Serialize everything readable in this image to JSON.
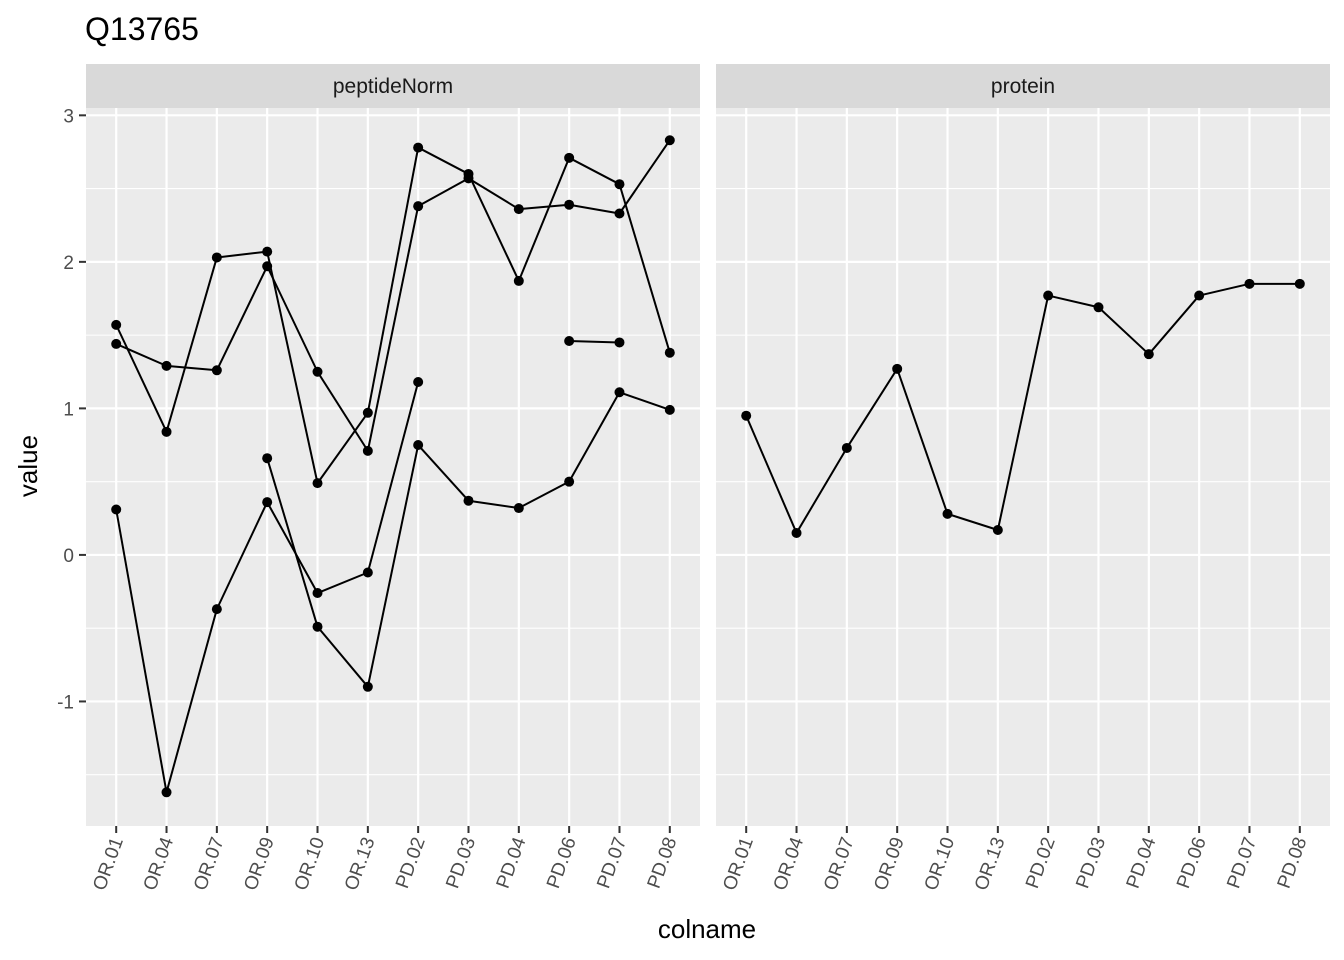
{
  "title": "Q13765",
  "chart_data": {
    "type": "line",
    "title": "Q13765",
    "xlabel": "colname",
    "ylabel": "value",
    "ylim": [
      -1.85,
      3.05
    ],
    "y_ticks": [
      -1,
      0,
      1,
      2,
      3
    ],
    "grid": true,
    "categories": [
      "OR.01",
      "OR.04",
      "OR.07",
      "OR.09",
      "OR.10",
      "OR.13",
      "PD.02",
      "PD.03",
      "PD.04",
      "PD.06",
      "PD.07",
      "PD.08"
    ],
    "panels": [
      {
        "label": "peptideNorm",
        "series": [
          {
            "values": [
              1.57,
              0.84,
              2.03,
              2.07,
              0.49,
              0.97,
              2.78,
              2.6,
              1.87,
              2.71,
              2.53,
              1.38
            ]
          },
          {
            "values": [
              1.44,
              1.29,
              1.26,
              1.97,
              1.25,
              0.71,
              2.38,
              2.57,
              2.36,
              2.39,
              2.33,
              2.83
            ]
          },
          {
            "values": [
              0.31,
              -1.62,
              -0.37,
              0.36,
              -0.26,
              -0.12,
              1.18,
              null,
              null,
              null,
              null,
              null
            ]
          },
          {
            "values": [
              null,
              null,
              null,
              0.66,
              -0.49,
              -0.9,
              0.75,
              0.37,
              0.32,
              0.5,
              1.11,
              0.99
            ]
          },
          {
            "values": [
              null,
              null,
              null,
              null,
              null,
              null,
              null,
              null,
              null,
              1.46,
              1.45,
              null
            ]
          }
        ]
      },
      {
        "label": "protein",
        "series": [
          {
            "values": [
              0.95,
              0.15,
              0.73,
              1.27,
              0.28,
              0.17,
              1.77,
              1.69,
              1.37,
              1.77,
              1.85,
              1.85
            ]
          }
        ]
      }
    ]
  }
}
